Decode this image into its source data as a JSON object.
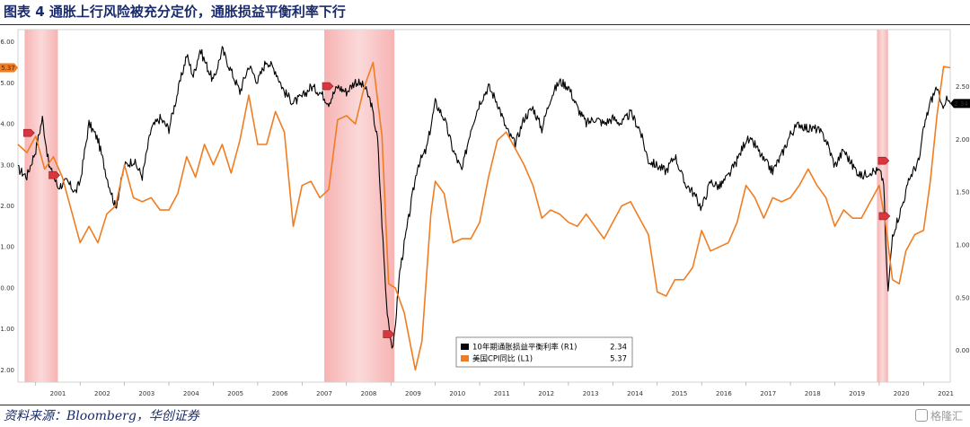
{
  "figure": {
    "title": "图表 4  通胀上行风险被充分定价，通胀损益平衡利率下行",
    "source": "资料来源：Bloomberg，华创证券",
    "watermark": "格隆汇"
  },
  "chart_data": {
    "type": "line",
    "left_axis": {
      "ticks": [
        "-2.00",
        "-1.00",
        "0.00",
        "1.00",
        "2.00",
        "3.00",
        "4.00",
        "5.00",
        "6.00"
      ],
      "ylim": [
        -2.3,
        6.3
      ]
    },
    "right_axis": {
      "ticks": [
        "0.00",
        "0.50",
        "1.00",
        "1.50",
        "2.00",
        "2.50"
      ],
      "ylim": [
        -0.3,
        3.04
      ]
    },
    "x_range": [
      2000.6,
      2021.6
    ],
    "x_ticks": [
      "2001",
      "2002",
      "2003",
      "2004",
      "2005",
      "2006",
      "2007",
      "2008",
      "2009",
      "2010",
      "2011",
      "2012",
      "2013",
      "2014",
      "2015",
      "2016",
      "2017",
      "2018",
      "2019",
      "2020",
      "2021"
    ],
    "recessions": [
      [
        2000.75,
        2001.5
      ],
      [
        2007.5,
        2009.08
      ],
      [
        2019.95,
        2020.2
      ]
    ],
    "series": [
      {
        "name": "10年期通胀损益平衡利率 (R1)",
        "axis": "right",
        "color": "#000000",
        "last_value": "2.34",
        "points": [
          [
            2000.6,
            1.72
          ],
          [
            2000.8,
            1.65
          ],
          [
            2001.0,
            1.9
          ],
          [
            2001.15,
            2.2
          ],
          [
            2001.3,
            1.75
          ],
          [
            2001.5,
            1.55
          ],
          [
            2001.7,
            1.6
          ],
          [
            2001.9,
            1.5
          ],
          [
            2002.0,
            1.6
          ],
          [
            2002.2,
            2.15
          ],
          [
            2002.4,
            2.0
          ],
          [
            2002.6,
            1.65
          ],
          [
            2002.8,
            1.35
          ],
          [
            2003.0,
            1.75
          ],
          [
            2003.2,
            1.8
          ],
          [
            2003.4,
            1.65
          ],
          [
            2003.6,
            2.1
          ],
          [
            2003.8,
            2.2
          ],
          [
            2004.0,
            2.1
          ],
          [
            2004.2,
            2.45
          ],
          [
            2004.4,
            2.8
          ],
          [
            2004.55,
            2.6
          ],
          [
            2004.7,
            2.85
          ],
          [
            2004.85,
            2.7
          ],
          [
            2005.0,
            2.55
          ],
          [
            2005.2,
            2.85
          ],
          [
            2005.4,
            2.65
          ],
          [
            2005.6,
            2.45
          ],
          [
            2005.8,
            2.7
          ],
          [
            2006.0,
            2.55
          ],
          [
            2006.2,
            2.75
          ],
          [
            2006.4,
            2.65
          ],
          [
            2006.6,
            2.45
          ],
          [
            2006.8,
            2.35
          ],
          [
            2007.0,
            2.4
          ],
          [
            2007.2,
            2.5
          ],
          [
            2007.4,
            2.45
          ],
          [
            2007.6,
            2.35
          ],
          [
            2007.8,
            2.5
          ],
          [
            2008.0,
            2.45
          ],
          [
            2008.2,
            2.55
          ],
          [
            2008.4,
            2.5
          ],
          [
            2008.55,
            2.35
          ],
          [
            2008.7,
            2.0
          ],
          [
            2008.8,
            1.2
          ],
          [
            2008.9,
            0.45
          ],
          [
            2009.0,
            0.1
          ],
          [
            2009.05,
            0.0
          ],
          [
            2009.2,
            0.75
          ],
          [
            2009.4,
            1.25
          ],
          [
            2009.6,
            1.75
          ],
          [
            2009.8,
            1.9
          ],
          [
            2010.0,
            2.35
          ],
          [
            2010.2,
            2.2
          ],
          [
            2010.4,
            1.9
          ],
          [
            2010.6,
            1.7
          ],
          [
            2010.8,
            2.1
          ],
          [
            2011.0,
            2.35
          ],
          [
            2011.2,
            2.5
          ],
          [
            2011.4,
            2.35
          ],
          [
            2011.6,
            2.1
          ],
          [
            2011.8,
            1.95
          ],
          [
            2012.0,
            2.2
          ],
          [
            2012.2,
            2.3
          ],
          [
            2012.4,
            2.1
          ],
          [
            2012.6,
            2.4
          ],
          [
            2012.8,
            2.55
          ],
          [
            2013.0,
            2.5
          ],
          [
            2013.2,
            2.3
          ],
          [
            2013.4,
            2.15
          ],
          [
            2013.6,
            2.2
          ],
          [
            2013.8,
            2.15
          ],
          [
            2014.0,
            2.2
          ],
          [
            2014.2,
            2.15
          ],
          [
            2014.4,
            2.25
          ],
          [
            2014.6,
            2.1
          ],
          [
            2014.8,
            1.8
          ],
          [
            2015.0,
            1.75
          ],
          [
            2015.2,
            1.7
          ],
          [
            2015.4,
            1.85
          ],
          [
            2015.6,
            1.6
          ],
          [
            2015.8,
            1.5
          ],
          [
            2016.0,
            1.35
          ],
          [
            2016.2,
            1.6
          ],
          [
            2016.4,
            1.55
          ],
          [
            2016.6,
            1.65
          ],
          [
            2016.8,
            1.8
          ],
          [
            2017.0,
            2.0
          ],
          [
            2017.2,
            1.95
          ],
          [
            2017.4,
            1.8
          ],
          [
            2017.6,
            1.7
          ],
          [
            2017.8,
            1.85
          ],
          [
            2018.0,
            2.05
          ],
          [
            2018.2,
            2.15
          ],
          [
            2018.4,
            2.1
          ],
          [
            2018.6,
            2.1
          ],
          [
            2018.8,
            2.0
          ],
          [
            2019.0,
            1.75
          ],
          [
            2019.2,
            1.9
          ],
          [
            2019.4,
            1.75
          ],
          [
            2019.6,
            1.65
          ],
          [
            2019.8,
            1.7
          ],
          [
            2020.0,
            1.7
          ],
          [
            2020.1,
            1.6
          ],
          [
            2020.15,
            0.95
          ],
          [
            2020.2,
            0.55
          ],
          [
            2020.3,
            1.1
          ],
          [
            2020.5,
            1.35
          ],
          [
            2020.7,
            1.65
          ],
          [
            2020.9,
            1.8
          ],
          [
            2021.0,
            2.1
          ],
          [
            2021.15,
            2.35
          ],
          [
            2021.3,
            2.5
          ],
          [
            2021.4,
            2.3
          ],
          [
            2021.5,
            2.38
          ],
          [
            2021.6,
            2.34
          ]
        ]
      },
      {
        "name": "美国CPI同比 (L1)",
        "axis": "left",
        "color": "#f07d22",
        "last_value": "5.37",
        "points": [
          [
            2000.6,
            3.5
          ],
          [
            2000.8,
            3.3
          ],
          [
            2001.0,
            3.7
          ],
          [
            2001.2,
            2.9
          ],
          [
            2001.4,
            3.2
          ],
          [
            2001.6,
            2.7
          ],
          [
            2001.8,
            1.9
          ],
          [
            2002.0,
            1.1
          ],
          [
            2002.2,
            1.5
          ],
          [
            2002.4,
            1.1
          ],
          [
            2002.6,
            1.8
          ],
          [
            2002.8,
            2.0
          ],
          [
            2003.0,
            3.0
          ],
          [
            2003.2,
            2.2
          ],
          [
            2003.4,
            2.1
          ],
          [
            2003.6,
            2.2
          ],
          [
            2003.8,
            1.9
          ],
          [
            2004.0,
            1.9
          ],
          [
            2004.2,
            2.3
          ],
          [
            2004.4,
            3.2
          ],
          [
            2004.6,
            2.7
          ],
          [
            2004.8,
            3.5
          ],
          [
            2005.0,
            3.0
          ],
          [
            2005.2,
            3.5
          ],
          [
            2005.4,
            2.8
          ],
          [
            2005.6,
            3.6
          ],
          [
            2005.8,
            4.7
          ],
          [
            2006.0,
            3.5
          ],
          [
            2006.2,
            3.5
          ],
          [
            2006.4,
            4.3
          ],
          [
            2006.6,
            3.8
          ],
          [
            2006.8,
            1.5
          ],
          [
            2007.0,
            2.5
          ],
          [
            2007.2,
            2.6
          ],
          [
            2007.4,
            2.2
          ],
          [
            2007.6,
            2.4
          ],
          [
            2007.8,
            4.1
          ],
          [
            2008.0,
            4.2
          ],
          [
            2008.2,
            4.0
          ],
          [
            2008.4,
            4.9
          ],
          [
            2008.6,
            5.5
          ],
          [
            2008.8,
            3.7
          ],
          [
            2008.95,
            0.1
          ],
          [
            2009.1,
            0.0
          ],
          [
            2009.3,
            -0.6
          ],
          [
            2009.55,
            -2.0
          ],
          [
            2009.7,
            -1.3
          ],
          [
            2009.9,
            1.8
          ],
          [
            2010.0,
            2.6
          ],
          [
            2010.2,
            2.3
          ],
          [
            2010.4,
            1.1
          ],
          [
            2010.6,
            1.2
          ],
          [
            2010.8,
            1.2
          ],
          [
            2011.0,
            1.6
          ],
          [
            2011.2,
            2.7
          ],
          [
            2011.4,
            3.6
          ],
          [
            2011.6,
            3.8
          ],
          [
            2011.8,
            3.4
          ],
          [
            2012.0,
            3.0
          ],
          [
            2012.2,
            2.5
          ],
          [
            2012.4,
            1.7
          ],
          [
            2012.6,
            1.9
          ],
          [
            2012.8,
            1.8
          ],
          [
            2013.0,
            1.6
          ],
          [
            2013.2,
            1.5
          ],
          [
            2013.4,
            1.8
          ],
          [
            2013.6,
            1.5
          ],
          [
            2013.8,
            1.2
          ],
          [
            2014.0,
            1.6
          ],
          [
            2014.2,
            2.0
          ],
          [
            2014.4,
            2.1
          ],
          [
            2014.6,
            1.7
          ],
          [
            2014.8,
            1.3
          ],
          [
            2015.0,
            -0.1
          ],
          [
            2015.2,
            -0.2
          ],
          [
            2015.4,
            0.2
          ],
          [
            2015.6,
            0.2
          ],
          [
            2015.8,
            0.5
          ],
          [
            2016.0,
            1.4
          ],
          [
            2016.2,
            0.9
          ],
          [
            2016.4,
            1.0
          ],
          [
            2016.6,
            1.1
          ],
          [
            2016.8,
            1.6
          ],
          [
            2017.0,
            2.5
          ],
          [
            2017.2,
            2.2
          ],
          [
            2017.4,
            1.7
          ],
          [
            2017.6,
            2.2
          ],
          [
            2017.8,
            2.1
          ],
          [
            2018.0,
            2.2
          ],
          [
            2018.2,
            2.5
          ],
          [
            2018.4,
            2.9
          ],
          [
            2018.6,
            2.5
          ],
          [
            2018.8,
            2.2
          ],
          [
            2019.0,
            1.5
          ],
          [
            2019.2,
            1.9
          ],
          [
            2019.4,
            1.7
          ],
          [
            2019.6,
            1.7
          ],
          [
            2019.8,
            2.1
          ],
          [
            2020.0,
            2.5
          ],
          [
            2020.15,
            1.5
          ],
          [
            2020.3,
            0.2
          ],
          [
            2020.45,
            0.1
          ],
          [
            2020.6,
            0.9
          ],
          [
            2020.8,
            1.3
          ],
          [
            2021.0,
            1.4
          ],
          [
            2021.15,
            2.6
          ],
          [
            2021.3,
            4.2
          ],
          [
            2021.45,
            5.4
          ],
          [
            2021.6,
            5.37
          ]
        ]
      }
    ],
    "markers": [
      {
        "axis": "left",
        "x": 2000.85,
        "y": 3.78
      },
      {
        "axis": "left",
        "x": 2001.42,
        "y": 2.75
      },
      {
        "axis": "left",
        "x": 2007.58,
        "y": 4.92
      },
      {
        "axis": "left",
        "x": 2008.95,
        "y": -1.13
      },
      {
        "axis": "left",
        "x": 2020.1,
        "y": 3.1
      },
      {
        "axis": "left",
        "x": 2020.12,
        "y": 1.75
      }
    ],
    "left_tag": "5.37",
    "right_tag": "2.34",
    "legend": {
      "position": "bottom-center"
    }
  }
}
